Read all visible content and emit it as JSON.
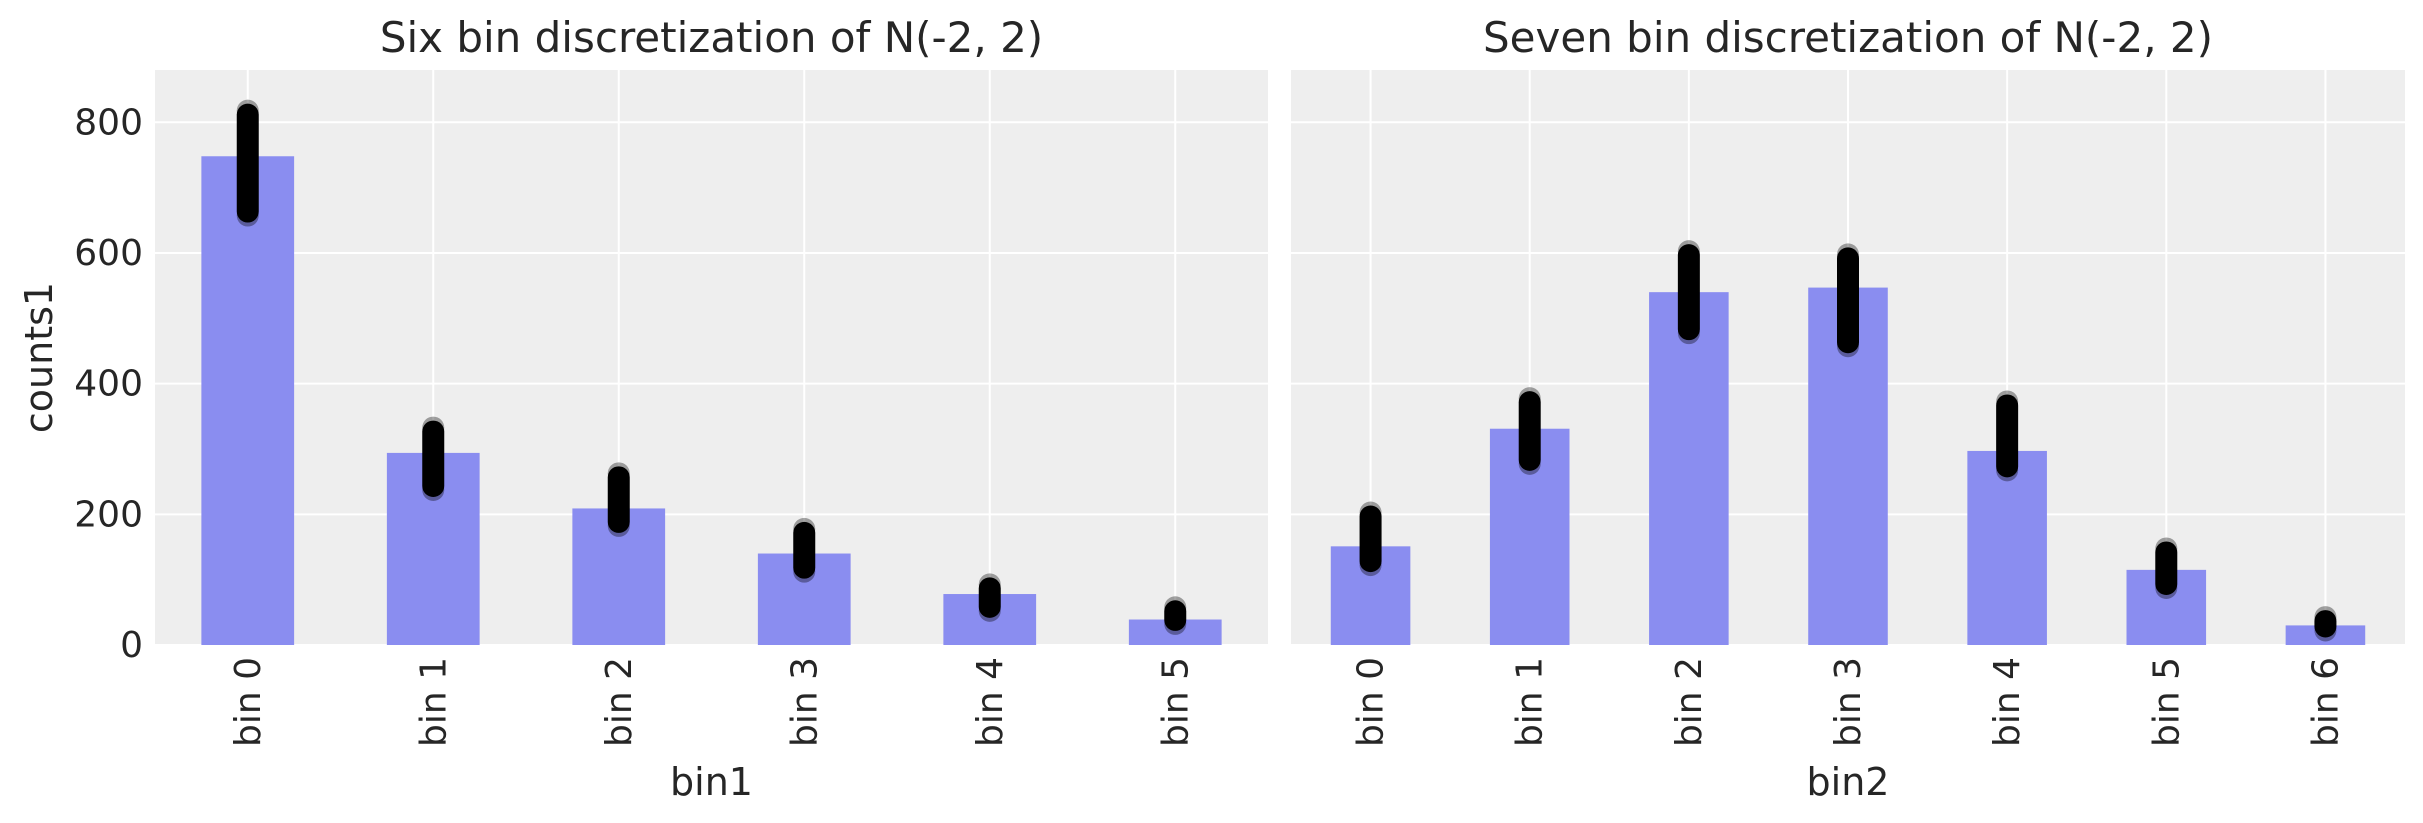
{
  "chart_data": [
    {
      "type": "bar",
      "title": "Six bin discretization of N(-2, 2)",
      "xlabel": "bin1",
      "ylabel": "counts1",
      "categories": [
        "bin 0",
        "bin 1",
        "bin 2",
        "bin 3",
        "bin 4",
        "bin 5"
      ],
      "values": [
        748,
        294,
        209,
        140,
        78,
        39
      ],
      "ppc_ranges": [
        [
          645,
          830
        ],
        [
          225,
          345
        ],
        [
          170,
          275
        ],
        [
          100,
          190
        ],
        [
          40,
          105
        ],
        [
          20,
          70
        ]
      ],
      "ylim": [
        0,
        880
      ],
      "yticks": [
        0,
        200,
        400,
        600,
        800
      ],
      "grid": true,
      "bar_color": "#8a8df0",
      "point_color": "#000000"
    },
    {
      "type": "bar",
      "title": "Seven bin discretization of N(-2, 2)",
      "xlabel": "bin2",
      "ylabel": "",
      "categories": [
        "bin 0",
        "bin 1",
        "bin 2",
        "bin 3",
        "bin 4",
        "bin 5",
        "bin 6"
      ],
      "values": [
        151,
        331,
        540,
        547,
        297,
        115,
        30
      ],
      "ppc_ranges": [
        [
          110,
          215
        ],
        [
          265,
          390
        ],
        [
          465,
          615
        ],
        [
          445,
          610
        ],
        [
          255,
          385
        ],
        [
          75,
          160
        ],
        [
          10,
          55
        ]
      ],
      "ylim": [
        0,
        880
      ],
      "yticks": [
        0,
        200,
        400,
        600,
        800
      ],
      "grid": true,
      "bar_color": "#8a8df0",
      "point_color": "#000000"
    }
  ]
}
